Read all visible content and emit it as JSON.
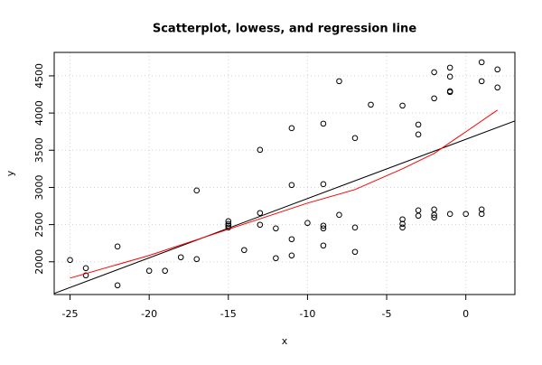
{
  "chart_data": {
    "type": "scatter",
    "title": "Scatterplot, lowess, and regression line",
    "x_label": "x",
    "y_label": "y",
    "xlim": [
      -26,
      3.1
    ],
    "ylim": [
      1560,
      4815
    ],
    "xticks": [
      -25,
      -20,
      -15,
      -10,
      -5,
      0
    ],
    "yticks": [
      2000,
      2500,
      3000,
      3500,
      4000,
      4500
    ],
    "grid": true,
    "series": [
      {
        "type": "scatter",
        "color": "#000000",
        "x": [
          -25,
          -24,
          -24,
          -22,
          -22,
          -20,
          -19,
          -18,
          -17,
          -17,
          -15,
          -15,
          -15,
          -15,
          -14,
          -13,
          -13,
          -13,
          -12,
          -12,
          -11,
          -11,
          -11,
          -11,
          -10,
          -9,
          -9,
          -9,
          -9,
          -9,
          -8,
          -8,
          -7,
          -7,
          -7,
          -6,
          -4,
          -4,
          -4,
          -4,
          -3,
          -3,
          -3,
          -3,
          -2,
          -2,
          -2,
          -2,
          -2,
          -1,
          -1,
          -1,
          -1,
          -1,
          0,
          1,
          1,
          1,
          1,
          2,
          2
        ],
        "values": [
          2024,
          1915,
          1818,
          2206,
          1684,
          1879,
          1879,
          2061,
          2036,
          2959,
          2546,
          2510,
          2486,
          2461,
          2158,
          3505,
          2656,
          2498,
          2449,
          2049,
          3797,
          3032,
          2304,
          2085,
          2522,
          3857,
          3044,
          2486,
          2449,
          2219,
          4428,
          2631,
          3663,
          2461,
          2134,
          4112,
          4100,
          2571,
          2510,
          2461,
          3845,
          3712,
          2692,
          2619,
          4549,
          4197,
          2704,
          2631,
          2595,
          4610,
          4489,
          4294,
          4282,
          2643,
          2643,
          4683,
          4428,
          2704,
          2643,
          4586,
          4343
        ]
      },
      {
        "type": "line",
        "color": "#000000",
        "x": [
          -26,
          3.1
        ],
        "values": [
          1575,
          3894
        ]
      },
      {
        "type": "line",
        "color": "#ff0000",
        "x": [
          -25,
          -20,
          -15,
          -10,
          -7,
          -4,
          -2,
          0,
          2
        ],
        "values": [
          1781,
          2085,
          2437,
          2789,
          2971,
          3250,
          3457,
          3748,
          4040
        ]
      }
    ]
  }
}
